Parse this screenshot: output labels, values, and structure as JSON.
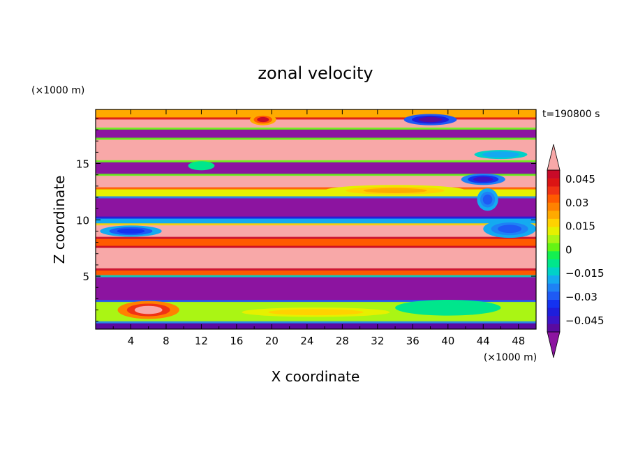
{
  "chart_data": {
    "type": "heatmap",
    "title": "zonal velocity",
    "xlabel": "X coordinate",
    "ylabel": "Z coordinate",
    "x_unit": "(×1000 m)",
    "y_unit": "(×1000 m)",
    "time_label": "t=190800 s",
    "xlim": [
      0,
      50
    ],
    "ylim": [
      0.3,
      19.8
    ],
    "x_ticks": [
      4,
      8,
      12,
      16,
      20,
      24,
      28,
      32,
      36,
      40,
      44,
      48
    ],
    "y_ticks": [
      5,
      10,
      15
    ],
    "colorbar": {
      "levels": [
        -0.05,
        -0.045,
        -0.04,
        -0.035,
        -0.03,
        -0.025,
        -0.02,
        -0.015,
        -0.01,
        -0.005,
        0,
        0.005,
        0.01,
        0.015,
        0.02,
        0.025,
        0.03,
        0.035,
        0.04,
        0.045,
        0.05
      ],
      "colors": [
        "#5a0aa0",
        "#3c14c8",
        "#1e1edc",
        "#1432f0",
        "#1e5af5",
        "#1e82f5",
        "#14aaf0",
        "#00d2c8",
        "#00e68c",
        "#14f050",
        "#64f514",
        "#aaf514",
        "#e6f000",
        "#ffd200",
        "#ffaa00",
        "#ff8200",
        "#ff5a00",
        "#f03214",
        "#dc1414",
        "#c80a28"
      ],
      "below_color": "#8c14a0",
      "above_color": "#f8a8a8",
      "tick_labels": [
        "0.045",
        "0.03",
        "0.015",
        "0",
        "−0.015",
        "−0.03",
        "−0.045"
      ]
    },
    "bands": [
      {
        "z0": 0.3,
        "z1": 0.9,
        "v": -0.046
      },
      {
        "z0": 0.9,
        "z1": 2.8,
        "v": 0.005
      },
      {
        "z0": 2.8,
        "z1": 5.0,
        "v": -0.06
      },
      {
        "z0": 5.0,
        "z1": 5.6,
        "v": 0.03
      },
      {
        "z0": 5.6,
        "z1": 7.6,
        "v": 0.06
      },
      {
        "z0": 7.6,
        "z1": 8.4,
        "v": 0.03
      },
      {
        "z0": 8.4,
        "z1": 9.6,
        "v": 0.06
      },
      {
        "z0": 9.6,
        "z1": 10.2,
        "v": -0.02
      },
      {
        "z0": 10.2,
        "z1": 12.0,
        "v": -0.06
      },
      {
        "z0": 12.0,
        "z1": 12.8,
        "v": 0.01
      },
      {
        "z0": 12.8,
        "z1": 14.0,
        "v": 0.06
      },
      {
        "z0": 14.0,
        "z1": 15.2,
        "v": -0.06
      },
      {
        "z0": 15.2,
        "z1": 17.2,
        "v": 0.06
      },
      {
        "z0": 17.2,
        "z1": 18.1,
        "v": -0.06
      },
      {
        "z0": 18.1,
        "z1": 19.0,
        "v": 0.06
      },
      {
        "z0": 19.0,
        "z1": 19.8,
        "v": 0.02
      }
    ],
    "features": [
      {
        "x": 6,
        "z": 2.0,
        "rx": 3.5,
        "rz": 0.8,
        "v": 0.05
      },
      {
        "x": 25,
        "z": 1.8,
        "rx": 12,
        "rz": 0.6,
        "v": 0.015
      },
      {
        "x": 40,
        "z": 2.2,
        "rx": 6,
        "rz": 0.7,
        "v": -0.01
      },
      {
        "x": 4,
        "z": 9.0,
        "rx": 3.5,
        "rz": 0.5,
        "v": -0.035
      },
      {
        "x": 47,
        "z": 9.2,
        "rx": 3,
        "rz": 0.8,
        "v": -0.03
      },
      {
        "x": 44.5,
        "z": 11.8,
        "rx": 1.2,
        "rz": 1.0,
        "v": -0.03
      },
      {
        "x": 34,
        "z": 12.6,
        "rx": 8,
        "rz": 0.5,
        "v": 0.02
      },
      {
        "x": 44,
        "z": 13.6,
        "rx": 2.5,
        "rz": 0.5,
        "v": -0.045
      },
      {
        "x": 12,
        "z": 14.8,
        "rx": 1.5,
        "rz": 0.4,
        "v": -0.01
      },
      {
        "x": 46,
        "z": 15.8,
        "rx": 3,
        "rz": 0.4,
        "v": -0.02
      },
      {
        "x": 19,
        "z": 18.9,
        "rx": 1.5,
        "rz": 0.5,
        "v": 0.045
      },
      {
        "x": 38,
        "z": 18.9,
        "rx": 3,
        "rz": 0.5,
        "v": -0.05
      }
    ]
  }
}
